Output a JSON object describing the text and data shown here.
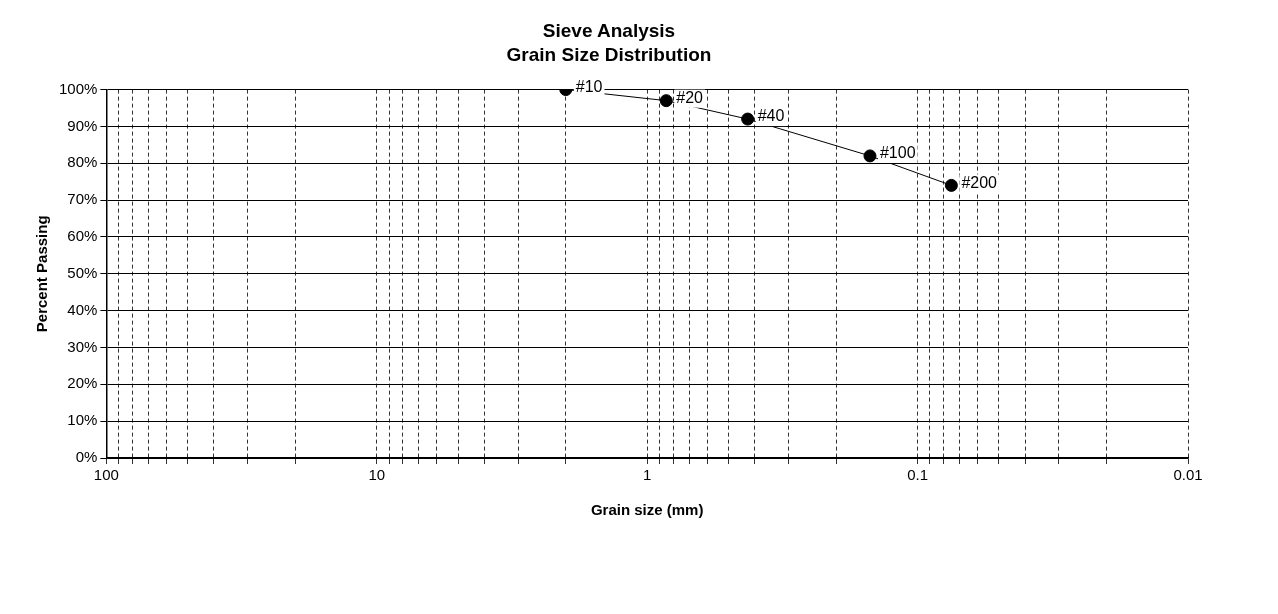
{
  "chart_data": {
    "type": "line",
    "title": "Sieve Analysis",
    "subtitle": "Grain Size Distribution",
    "xlabel": "Grain size (mm)",
    "ylabel": "Percent Passing",
    "x": [
      2.0,
      0.85,
      0.425,
      0.15,
      0.075
    ],
    "series": [
      {
        "color": "#000000",
        "values": [
          100,
          97,
          92,
          82,
          74
        ]
      }
    ],
    "log": "x",
    "xlim": [
      100,
      0.01
    ],
    "xticks": [
      100,
      {
        "value": 90,
        "label": null
      },
      {
        "value": 80,
        "label": null
      },
      {
        "value": 70,
        "label": null
      },
      {
        "value": 60,
        "label": null
      },
      {
        "value": 50,
        "label": null
      },
      {
        "value": 40,
        "label": null
      },
      {
        "value": 30,
        "label": null
      },
      {
        "value": 20,
        "label": null
      },
      10,
      {
        "value": 9,
        "label": null
      },
      {
        "value": 8,
        "label": null
      },
      {
        "value": 7,
        "label": null
      },
      {
        "value": 6,
        "label": null
      },
      {
        "value": 5,
        "label": null
      },
      {
        "value": 4,
        "label": null
      },
      {
        "value": 3,
        "label": null
      },
      {
        "value": 2,
        "label": null
      },
      1,
      {
        "value": 0.9,
        "label": null
      },
      {
        "value": 0.8,
        "label": null
      },
      {
        "value": 0.7,
        "label": null
      },
      {
        "value": 0.6,
        "label": null
      },
      {
        "value": 0.5,
        "label": null
      },
      {
        "value": 0.4,
        "label": null
      },
      {
        "value": 0.3,
        "label": null
      },
      {
        "value": 0.2,
        "label": null
      },
      0.1,
      {
        "value": 0.09,
        "label": null
      },
      {
        "value": 0.08,
        "label": null
      },
      {
        "value": 0.07,
        "label": null
      },
      {
        "value": 0.06,
        "label": null
      },
      {
        "value": 0.05,
        "label": null
      },
      {
        "value": 0.04,
        "label": null
      },
      {
        "value": 0.03,
        "label": null
      },
      {
        "value": 0.02,
        "label": null
      },
      0.01
    ],
    "ylim": [
      0,
      100
    ],
    "yticks": [
      {
        "value": 0,
        "label": "0%"
      },
      {
        "value": 10,
        "label": "10%"
      },
      {
        "value": 20,
        "label": "20%"
      },
      {
        "value": 30,
        "label": "30%"
      },
      {
        "value": 40,
        "label": "40%"
      },
      {
        "value": 50,
        "label": "50%"
      },
      {
        "value": 60,
        "label": "60%"
      },
      {
        "value": 70,
        "label": "70%"
      },
      {
        "value": 80,
        "label": "80%"
      },
      {
        "value": 90,
        "label": "90%"
      },
      {
        "value": 100,
        "label": "100%"
      }
    ],
    "grid": true,
    "legend": false,
    "marker": "circle",
    "line_style": "solid",
    "annotations": [
      {
        "text": "#10",
        "x": 2.0,
        "y": 100
      },
      {
        "text": "#20",
        "x": 0.85,
        "y": 97
      },
      {
        "text": "#40",
        "x": 0.425,
        "y": 92
      },
      {
        "text": "#100",
        "x": 0.15,
        "y": 82
      },
      {
        "text": "#200",
        "x": 0.075,
        "y": 74
      }
    ]
  }
}
